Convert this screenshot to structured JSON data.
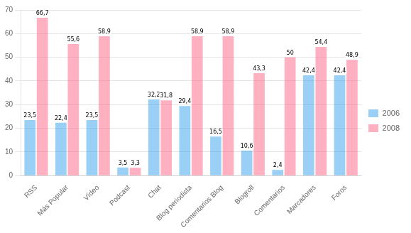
{
  "chart_data": {
    "type": "bar",
    "categories": [
      "RSS",
      "Más Popular",
      "Vídeo",
      "Podcast",
      "Chat",
      "Blog periodista",
      "Comentarios Blog",
      "Blogroll",
      "Comentarios",
      "Marcadores",
      "Foros"
    ],
    "series": [
      {
        "name": "2006",
        "values": [
          23.5,
          22.4,
          23.5,
          3.5,
          32.2,
          29.4,
          16.5,
          10.6,
          2.4,
          42.4,
          42.4
        ],
        "value_labels": [
          "23,5",
          "22,4",
          "23,5",
          "3,5",
          "32,2",
          "29,4",
          "16,5",
          "10,6",
          "2,4",
          "42,4",
          "42,4"
        ]
      },
      {
        "name": "2008",
        "values": [
          66.7,
          55.6,
          58.9,
          3.3,
          31.8,
          58.9,
          58.9,
          43.3,
          50.0,
          54.4,
          48.9
        ],
        "value_labels": [
          "66,7",
          "55,6",
          "58,9",
          "3,3",
          "31,8",
          "58,9",
          "58,9",
          "43,3",
          "50",
          "54,4",
          "48,9"
        ]
      }
    ],
    "ylim": [
      0,
      70
    ],
    "yticks": [
      0,
      10,
      20,
      30,
      40,
      50,
      60,
      70
    ],
    "grid": true,
    "legend": "right",
    "data_labels": true
  }
}
